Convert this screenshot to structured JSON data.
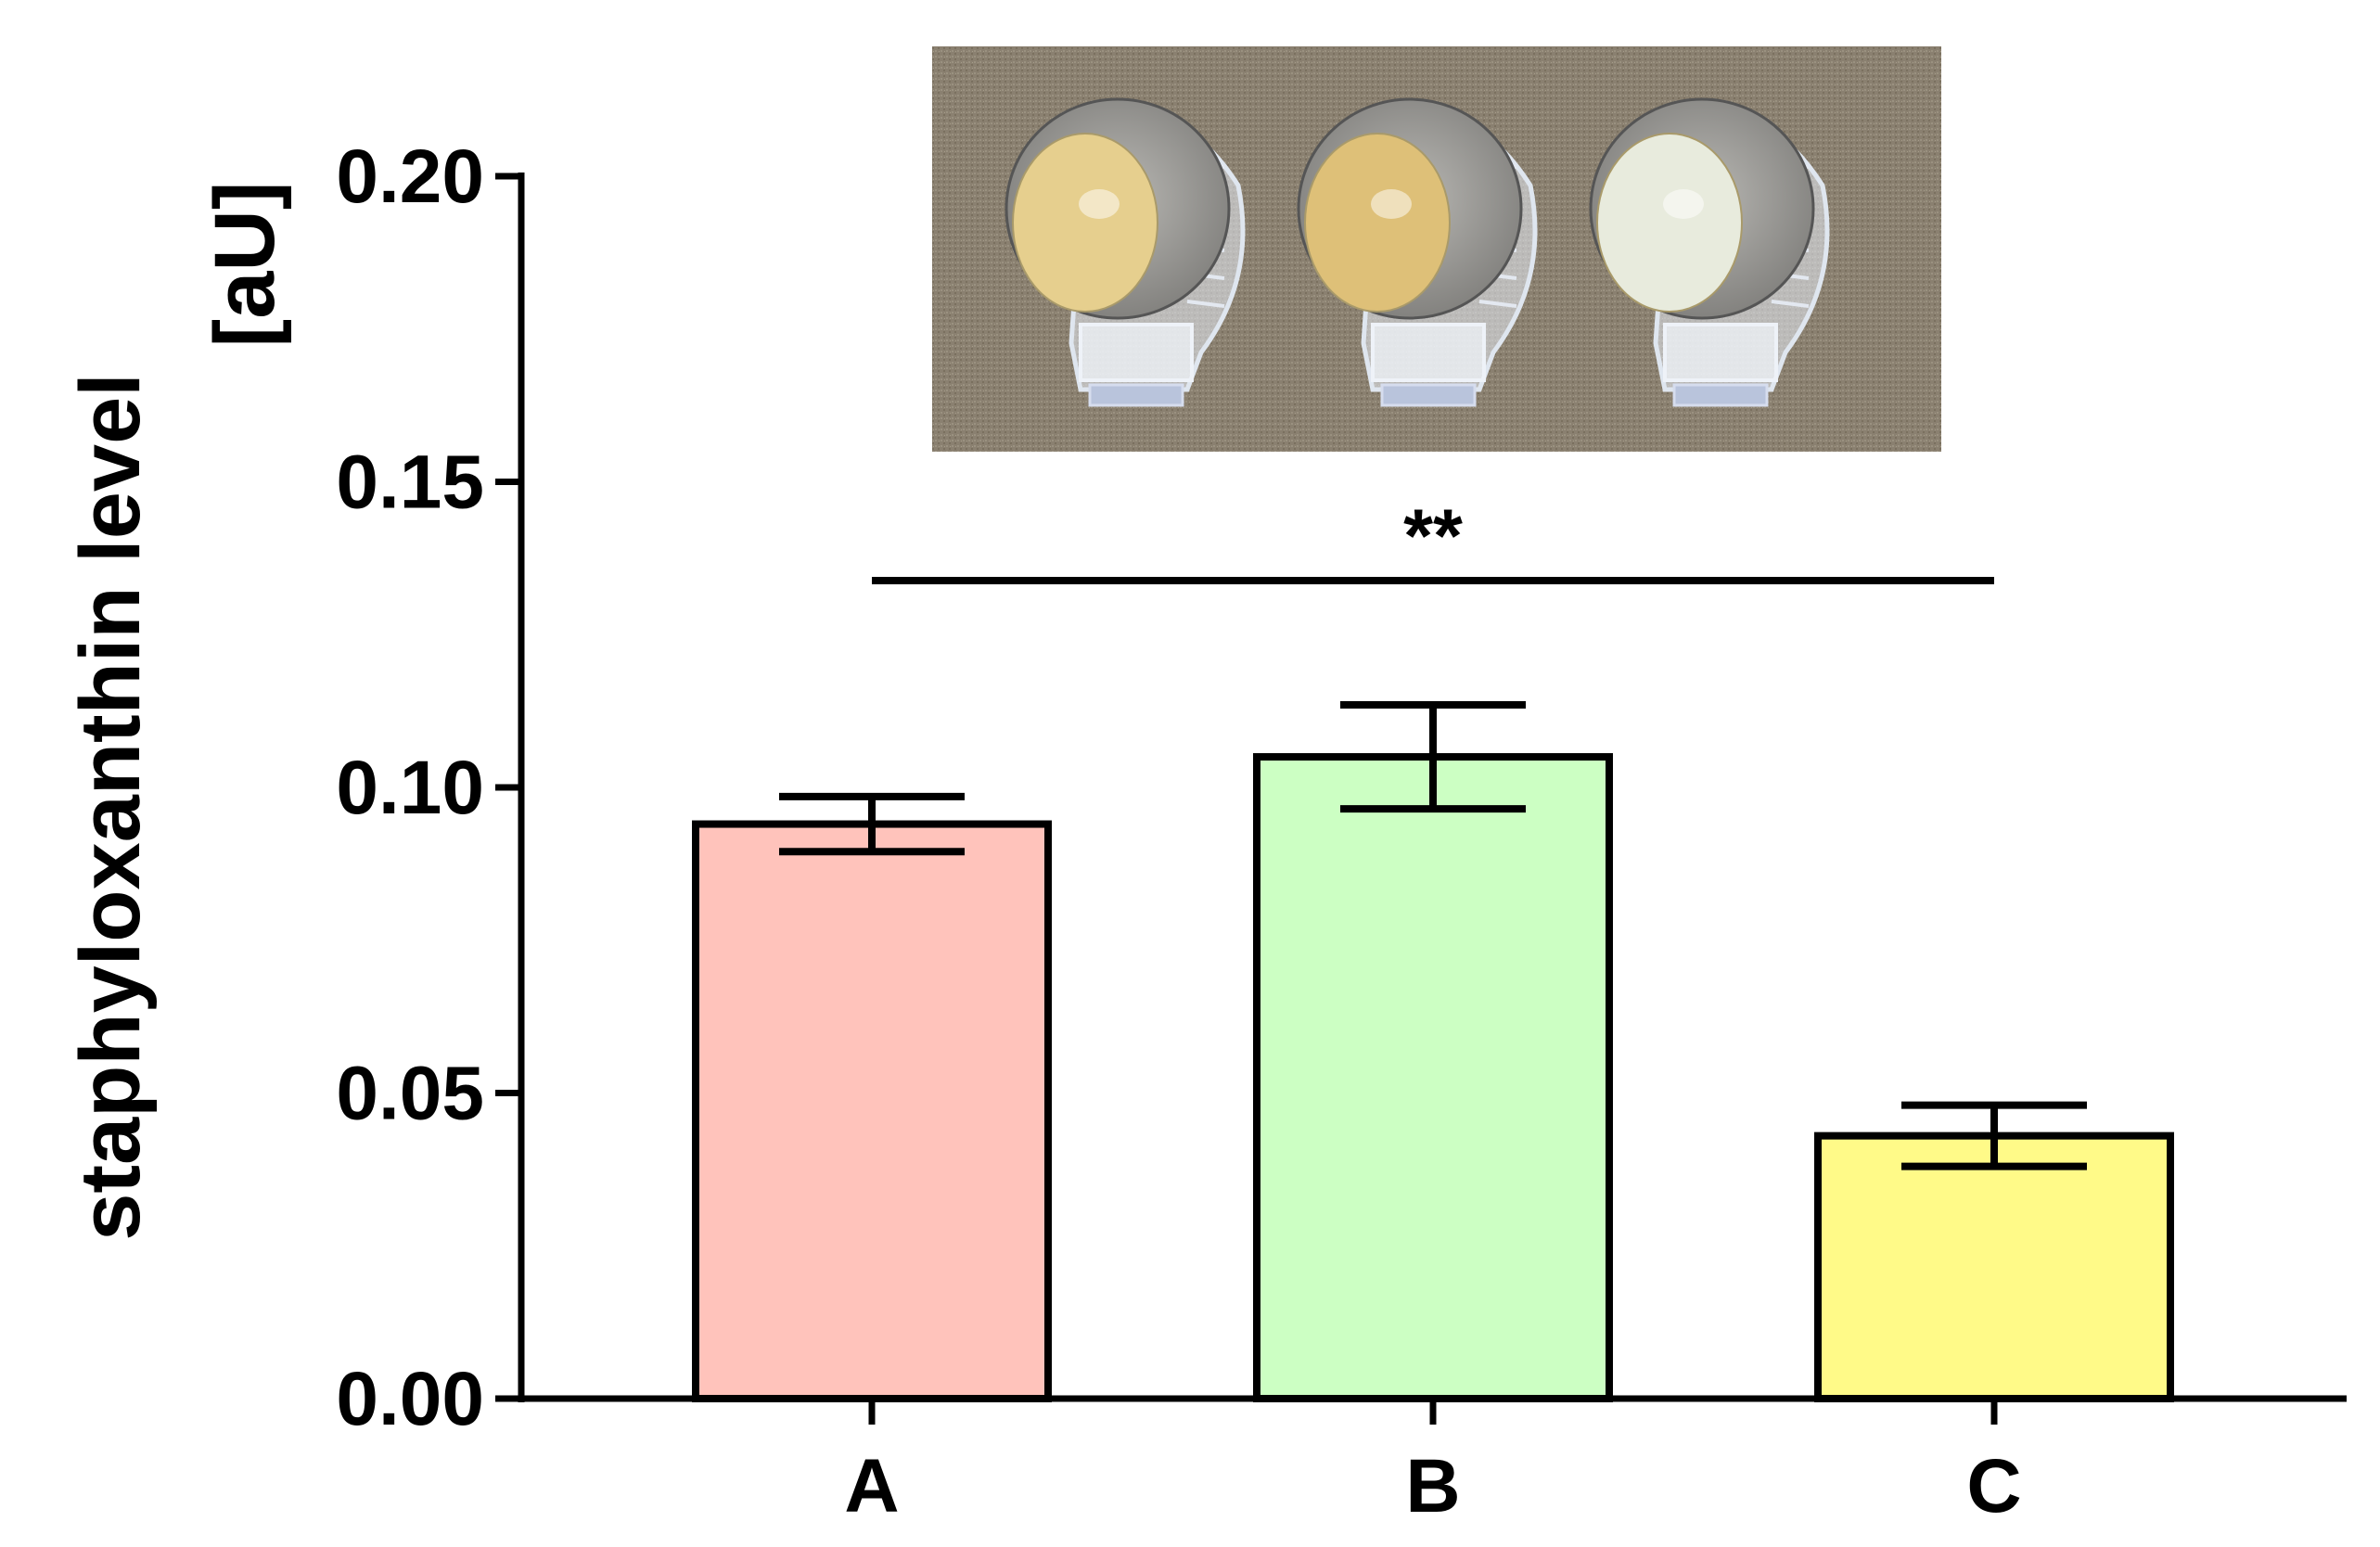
{
  "chart_data": {
    "type": "bar",
    "title": "",
    "xlabel": "",
    "ylabel": "staphyloxanthin level [aU]",
    "ylabel_lines": [
      "staphyloxanthin level",
      "[aU]"
    ],
    "categories": [
      "A",
      "B",
      "C"
    ],
    "values": [
      0.094,
      0.105,
      0.043
    ],
    "errors": [
      0.0045,
      0.0085,
      0.005
    ],
    "bar_colors": [
      "#FFC3BB",
      "#CCFFC3",
      "#FFFA88"
    ],
    "ylim": [
      0.0,
      0.2
    ],
    "yticks": [
      "0.00",
      "0.05",
      "0.10",
      "0.15",
      "0.20"
    ],
    "grid": false,
    "significance": {
      "from": "A",
      "to": "C",
      "label": "**"
    }
  },
  "inset": {
    "description_icon": "tube-photo",
    "tubes": [
      {
        "pellet_color": "#E6CF8E"
      },
      {
        "pellet_color": "#DEC078"
      },
      {
        "pellet_color": "#E8EBDD"
      }
    ]
  }
}
